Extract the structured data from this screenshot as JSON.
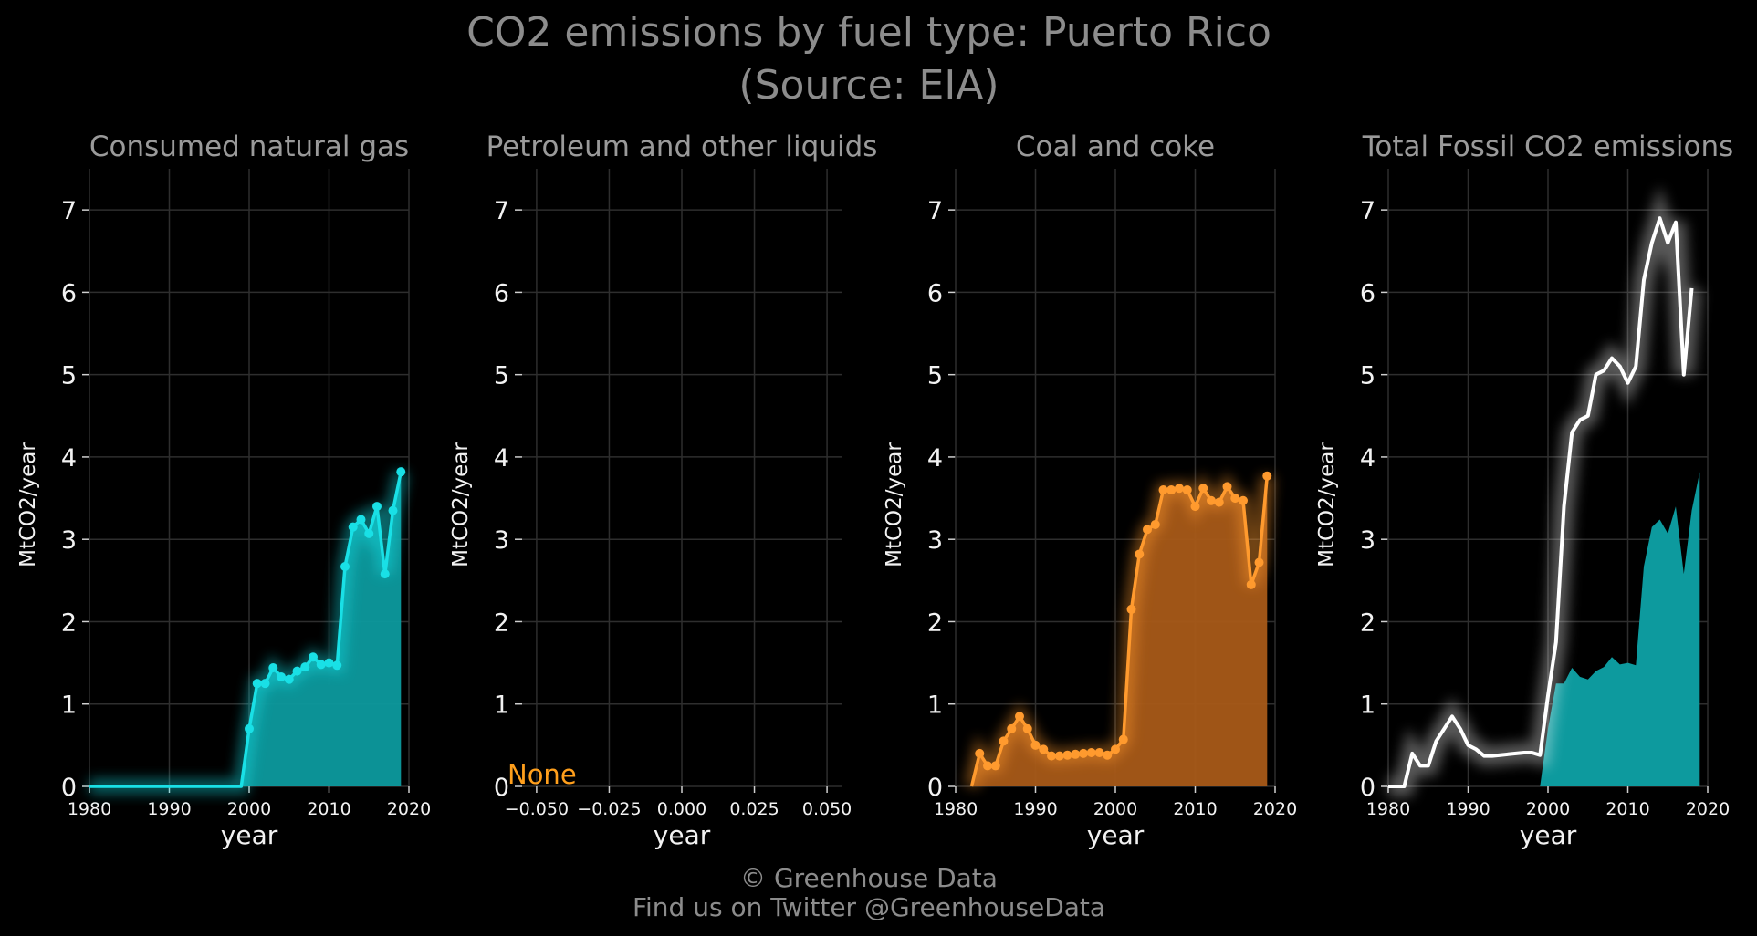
{
  "title_line1": "CO2 emissions by fuel type: Puerto Rico",
  "title_line2": "(Source: EIA)",
  "credit_line1": "© Greenhouse Data",
  "credit_line2": "Find us on Twitter @GreenhouseData",
  "colors": {
    "gas": "#19e0e6",
    "gas_fill": "#0d9a9e",
    "coal": "#ff9a2e",
    "coal_fill": "#a85a18",
    "total": "#ffffff",
    "none_text": "#ff9f1c"
  },
  "chart_data": [
    {
      "type": "area",
      "title": "Consumed natural gas",
      "xlabel": "year",
      "ylabel": "MtCO2/year",
      "xlim": [
        1980,
        2020
      ],
      "ylim": [
        0,
        7.5
      ],
      "xticks": [
        "1980",
        "1990",
        "2000",
        "2010",
        "2020"
      ],
      "yticks": [
        "0",
        "1",
        "2",
        "3",
        "4",
        "5",
        "6",
        "7"
      ],
      "grid": true,
      "series": [
        {
          "x": [
            1980,
            1981,
            1982,
            1983,
            1984,
            1985,
            1986,
            1987,
            1988,
            1989,
            1990,
            1991,
            1992,
            1993,
            1994,
            1995,
            1996,
            1997,
            1998,
            1999,
            2000,
            2001,
            2002,
            2003,
            2004,
            2005,
            2006,
            2007,
            2008,
            2009,
            2010,
            2011,
            2012,
            2013,
            2014,
            2015,
            2016,
            2017,
            2018,
            2019
          ],
          "values": [
            0,
            0,
            0,
            0,
            0,
            0,
            0,
            0,
            0,
            0,
            0,
            0,
            0,
            0,
            0,
            0,
            0,
            0,
            0,
            0,
            0.7,
            1.25,
            1.25,
            1.44,
            1.33,
            1.3,
            1.4,
            1.45,
            1.57,
            1.48,
            1.5,
            1.47,
            2.67,
            3.15,
            3.24,
            3.07,
            3.4,
            2.58,
            3.35,
            3.82
          ]
        }
      ]
    },
    {
      "type": "area",
      "title": "Petroleum and other liquids",
      "xlabel": "year",
      "ylabel": "MtCO2/year",
      "xlim": [
        -0.055,
        0.055
      ],
      "ylim": [
        0,
        7.5
      ],
      "xticks": [
        "−0.050",
        "−0.025",
        "0.000",
        "0.025",
        "0.050"
      ],
      "yticks": [
        "0",
        "1",
        "2",
        "3",
        "4",
        "5",
        "6",
        "7"
      ],
      "grid": true,
      "annotation": "None",
      "series": []
    },
    {
      "type": "area",
      "title": "Coal and coke",
      "xlabel": "year",
      "ylabel": "MtCO2/year",
      "xlim": [
        1980,
        2020
      ],
      "ylim": [
        0,
        7.5
      ],
      "xticks": [
        "1980",
        "1990",
        "2000",
        "2010",
        "2020"
      ],
      "yticks": [
        "0",
        "1",
        "2",
        "3",
        "4",
        "5",
        "6",
        "7"
      ],
      "grid": true,
      "series": [
        {
          "x": [
            1982,
            1983,
            1984,
            1985,
            1986,
            1987,
            1988,
            1989,
            1990,
            1991,
            1992,
            1993,
            1994,
            1995,
            1996,
            1997,
            1998,
            1999,
            2000,
            2001,
            2002,
            2003,
            2004,
            2005,
            2006,
            2007,
            2008,
            2009,
            2010,
            2011,
            2012,
            2013,
            2014,
            2015,
            2016,
            2017,
            2018,
            2019
          ],
          "values": [
            0,
            0.4,
            0.25,
            0.25,
            0.55,
            0.7,
            0.85,
            0.7,
            0.5,
            0.45,
            0.37,
            0.37,
            0.38,
            0.39,
            0.4,
            0.41,
            0.41,
            0.38,
            0.45,
            0.57,
            2.15,
            2.82,
            3.12,
            3.18,
            3.6,
            3.6,
            3.62,
            3.6,
            3.4,
            3.62,
            3.47,
            3.45,
            3.64,
            3.5,
            3.47,
            2.45,
            2.72,
            3.77
          ]
        }
      ]
    },
    {
      "type": "area",
      "title": "Total Fossil CO2 emissions",
      "xlabel": "year",
      "ylabel": "MtCO2/year",
      "xlim": [
        1980,
        2020
      ],
      "ylim": [
        0,
        7.5
      ],
      "xticks": [
        "1980",
        "1990",
        "2000",
        "2010",
        "2020"
      ],
      "yticks": [
        "0",
        "1",
        "2",
        "3",
        "4",
        "5",
        "6",
        "7"
      ],
      "grid": true,
      "series": [
        {
          "kind": "line",
          "x": [
            1980,
            1981,
            1982,
            1983,
            1984,
            1985,
            1986,
            1987,
            1988,
            1989,
            1990,
            1991,
            1992,
            1993,
            1994,
            1995,
            1996,
            1997,
            1998,
            1999,
            2000,
            2001,
            2002,
            2003,
            2004,
            2005,
            2006,
            2007,
            2008,
            2009,
            2010,
            2011,
            2012,
            2013,
            2014,
            2015,
            2016,
            2017,
            2018
          ],
          "values": [
            0,
            0,
            0,
            0.4,
            0.25,
            0.25,
            0.55,
            0.7,
            0.85,
            0.7,
            0.5,
            0.45,
            0.37,
            0.37,
            0.38,
            0.39,
            0.4,
            0.41,
            0.41,
            0.38,
            1.1,
            1.75,
            3.4,
            4.3,
            4.45,
            4.5,
            5.0,
            5.05,
            5.2,
            5.1,
            4.9,
            5.1,
            6.15,
            6.6,
            6.9,
            6.6,
            6.85,
            5.0,
            6.05
          ]
        },
        {
          "kind": "area",
          "x": [
            1999,
            2000,
            2001,
            2002,
            2003,
            2004,
            2005,
            2006,
            2007,
            2008,
            2009,
            2010,
            2011,
            2012,
            2013,
            2014,
            2015,
            2016,
            2017,
            2018,
            2019
          ],
          "values": [
            0,
            0.7,
            1.25,
            1.25,
            1.44,
            1.33,
            1.3,
            1.4,
            1.45,
            1.57,
            1.48,
            1.5,
            1.47,
            2.67,
            3.15,
            3.24,
            3.07,
            3.4,
            2.58,
            3.35,
            3.82
          ]
        }
      ]
    }
  ]
}
